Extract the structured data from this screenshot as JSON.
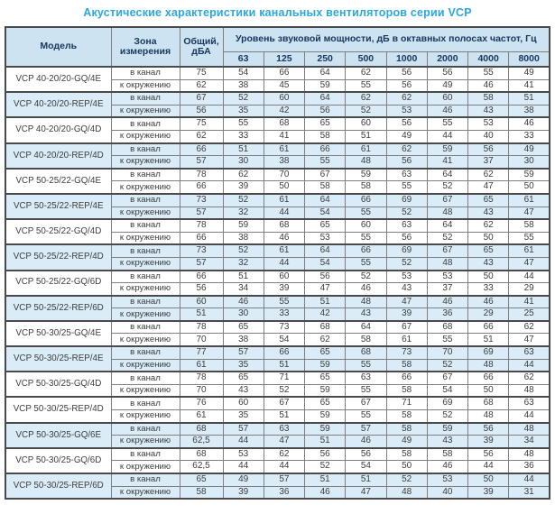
{
  "title": "Акустические характеристики канальных вентиляторов  серии VCP",
  "colors": {
    "title_accent": "#29a8df",
    "header_bg": "#cde3f2",
    "header_text": "#17375d",
    "shaded_row_bg": "#d9ecf8",
    "border": "#4a4a4a",
    "cell_text": "#3d3d3d"
  },
  "table": {
    "headers": {
      "model": "Модель",
      "zone": "Зона измерения",
      "total": "Общий, дБА",
      "spl": "Уровень звуковой мощности, дБ в октавных полосах частот, Гц",
      "frequencies": [
        "63",
        "125",
        "250",
        "500",
        "1000",
        "2000",
        "4000",
        "8000"
      ]
    },
    "zone_in_label": "в канал",
    "zone_out_label": "к окружению",
    "rows": [
      {
        "model": "VCP 40-20/20-GQ/4E",
        "shaded": false,
        "in": {
          "total": "75",
          "values": [
            54,
            66,
            64,
            62,
            56,
            56,
            55,
            49
          ]
        },
        "out": {
          "total": "62",
          "values": [
            38,
            45,
            59,
            55,
            56,
            49,
            46,
            41
          ]
        }
      },
      {
        "model": "VCP 40-20/20-REP/4E",
        "shaded": true,
        "in": {
          "total": "67",
          "values": [
            52,
            60,
            64,
            62,
            62,
            60,
            58,
            51
          ]
        },
        "out": {
          "total": "56",
          "values": [
            35,
            42,
            56,
            52,
            53,
            46,
            43,
            38
          ]
        }
      },
      {
        "model": "VCP 40-20/20-GQ/4D",
        "shaded": false,
        "in": {
          "total": "75",
          "values": [
            55,
            68,
            65,
            60,
            56,
            55,
            53,
            46
          ]
        },
        "out": {
          "total": "62",
          "values": [
            33,
            41,
            58,
            51,
            49,
            44,
            40,
            33
          ]
        }
      },
      {
        "model": "VCP 40-20/20-REP/4D",
        "shaded": true,
        "in": {
          "total": "66",
          "values": [
            51,
            61,
            66,
            61,
            62,
            59,
            56,
            49
          ]
        },
        "out": {
          "total": "57",
          "values": [
            30,
            38,
            55,
            48,
            56,
            41,
            37,
            30
          ]
        }
      },
      {
        "model": "VCP 50-25/22-GQ/4E",
        "shaded": false,
        "in": {
          "total": "78",
          "values": [
            62,
            70,
            67,
            59,
            63,
            64,
            62,
            59
          ]
        },
        "out": {
          "total": "66",
          "values": [
            39,
            50,
            58,
            58,
            55,
            52,
            47,
            50
          ]
        }
      },
      {
        "model": "VCP 50-25/22-REP/4E",
        "shaded": true,
        "in": {
          "total": "73",
          "values": [
            52,
            61,
            64,
            66,
            69,
            67,
            65,
            61
          ]
        },
        "out": {
          "total": "57",
          "values": [
            32,
            44,
            54,
            55,
            52,
            48,
            43,
            47
          ]
        }
      },
      {
        "model": "VCP 50-25/22-GQ/4D",
        "shaded": false,
        "in": {
          "total": "78",
          "values": [
            59,
            68,
            65,
            60,
            63,
            64,
            62,
            58
          ]
        },
        "out": {
          "total": "66",
          "values": [
            38,
            46,
            53,
            55,
            56,
            52,
            50,
            55
          ]
        }
      },
      {
        "model": "VCP 50-25/22-REP/4D",
        "shaded": true,
        "in": {
          "total": "73",
          "values": [
            52,
            61,
            64,
            66,
            69,
            67,
            65,
            61
          ]
        },
        "out": {
          "total": "57",
          "values": [
            32,
            44,
            54,
            55,
            52,
            48,
            43,
            47
          ]
        }
      },
      {
        "model": "VCP 50-25/22-GQ/6D",
        "shaded": false,
        "in": {
          "total": "66",
          "values": [
            51,
            60,
            56,
            52,
            53,
            53,
            50,
            44
          ]
        },
        "out": {
          "total": "56",
          "values": [
            34,
            39,
            47,
            46,
            43,
            37,
            33,
            29
          ]
        }
      },
      {
        "model": "VCP 50-25/22-REP/6D",
        "shaded": true,
        "in": {
          "total": "60",
          "values": [
            46,
            55,
            51,
            48,
            47,
            46,
            46,
            41
          ]
        },
        "out": {
          "total": "51",
          "values": [
            30,
            33,
            42,
            43,
            39,
            36,
            29,
            25
          ]
        }
      },
      {
        "model": "VCP 50-30/25-GQ/4E",
        "shaded": false,
        "in": {
          "total": "78",
          "values": [
            65,
            73,
            68,
            64,
            67,
            68,
            66,
            62
          ]
        },
        "out": {
          "total": "70",
          "values": [
            38,
            54,
            62,
            58,
            61,
            55,
            51,
            47
          ]
        }
      },
      {
        "model": "VCP 50-30/25-REP/4E",
        "shaded": true,
        "in": {
          "total": "77",
          "values": [
            57,
            66,
            65,
            68,
            73,
            70,
            69,
            63
          ]
        },
        "out": {
          "total": "61",
          "values": [
            35,
            51,
            59,
            55,
            58,
            52,
            48,
            44
          ]
        }
      },
      {
        "model": "VCP 50-30/25-GQ/4D",
        "shaded": false,
        "in": {
          "total": "78",
          "values": [
            65,
            71,
            65,
            63,
            66,
            67,
            66,
            62
          ]
        },
        "out": {
          "total": "70",
          "values": [
            43,
            52,
            59,
            55,
            58,
            54,
            50,
            48
          ]
        }
      },
      {
        "model": "VCP 50-30/25-REP/4D",
        "shaded": false,
        "in": {
          "total": "76",
          "values": [
            60,
            67,
            65,
            67,
            71,
            69,
            68,
            63
          ]
        },
        "out": {
          "total": "61",
          "values": [
            35,
            51,
            59,
            55,
            58,
            52,
            48,
            44
          ]
        }
      },
      {
        "model": "VCP 50-30/25-GQ/6E",
        "shaded": true,
        "in": {
          "total": "68",
          "values": [
            57,
            63,
            59,
            57,
            58,
            59,
            56,
            48
          ]
        },
        "out": {
          "total": "62,5",
          "values": [
            44,
            47,
            51,
            46,
            49,
            43,
            39,
            34
          ]
        }
      },
      {
        "model": "VCP 50-30/25-GQ/6D",
        "shaded": false,
        "in": {
          "total": "68",
          "values": [
            53,
            62,
            56,
            56,
            58,
            58,
            56,
            48
          ]
        },
        "out": {
          "total": "62,5",
          "values": [
            44,
            44,
            52,
            54,
            50,
            46,
            44,
            36
          ]
        }
      },
      {
        "model": "VCP 50-30/25-REP/6D",
        "shaded": true,
        "in": {
          "total": "65",
          "values": [
            49,
            57,
            51,
            51,
            52,
            53,
            50,
            44
          ]
        },
        "out": {
          "total": "58",
          "values": [
            39,
            36,
            46,
            47,
            48,
            40,
            39,
            31
          ]
        }
      }
    ]
  }
}
